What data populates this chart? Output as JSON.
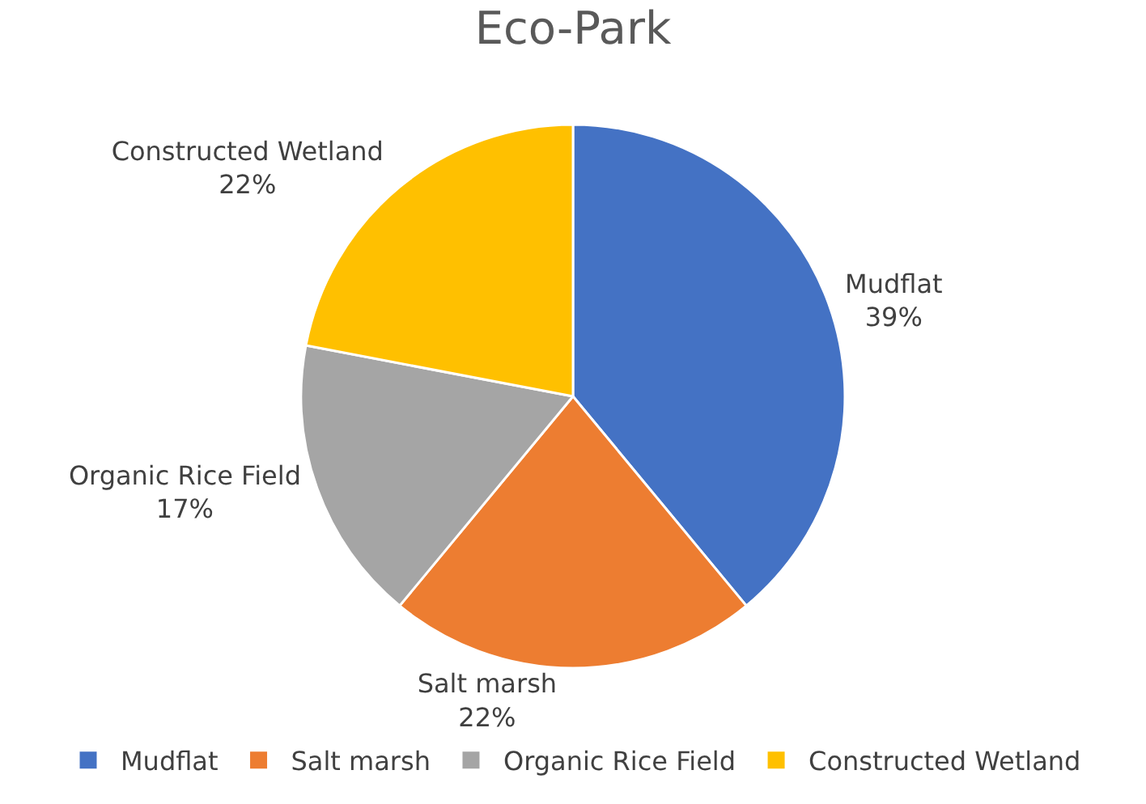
{
  "chart_data": {
    "type": "pie",
    "title": "Eco-Park",
    "categories": [
      "Mudflat",
      "Salt marsh",
      "Organic Rice Field",
      "Constructed Wetland"
    ],
    "values": [
      39,
      22,
      17,
      22
    ],
    "value_labels": [
      "39%",
      "22%",
      "17%",
      "22%"
    ],
    "colors": [
      "#4472c4",
      "#ed7d31",
      "#a5a5a5",
      "#ffc000"
    ],
    "legend": "bottom"
  }
}
